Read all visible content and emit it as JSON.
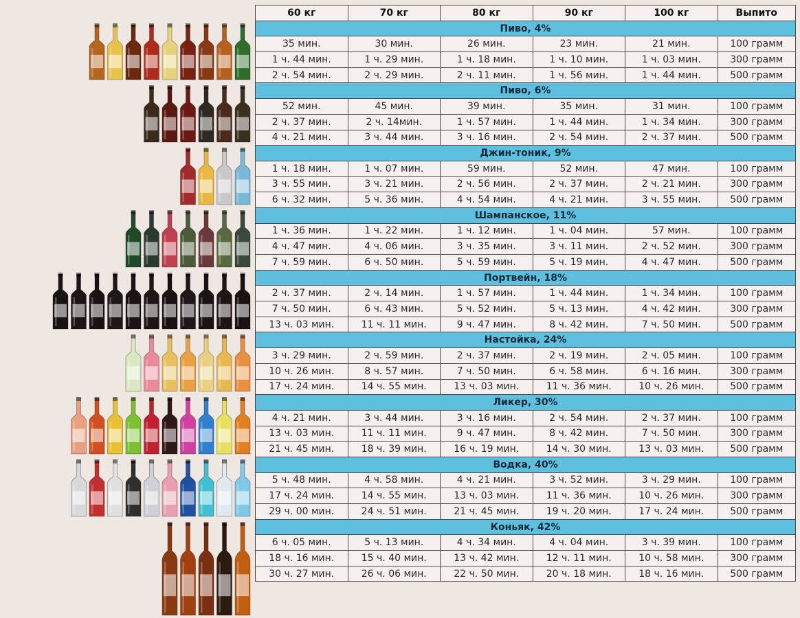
{
  "columns": [
    "60 кг",
    "70 кг",
    "80 кг",
    "90 кг",
    "100 кг",
    "Выпито"
  ],
  "sections": [
    {
      "title": "Пиво, 4%",
      "bottle_colors": [
        "#b5651d",
        "#e8c34a",
        "#6b2a10",
        "#b02a1a",
        "#e6d27a",
        "#7a2010",
        "#8a3a12",
        "#b5601e",
        "#2f6e2a"
      ],
      "rows": [
        [
          "35 мин.",
          "30 мин.",
          "26 мин.",
          "23 мин.",
          "21 мин.",
          "100 грамм"
        ],
        [
          "1 ч. 44 мин.",
          "1 ч. 29 мин.",
          "1 ч. 18 мин.",
          "1 ч. 10 мин.",
          "1 ч. 03 мин.",
          "300 грамм"
        ],
        [
          "2 ч. 54 мин.",
          "2 ч. 29 мин.",
          "2 ч. 11 мин.",
          "1 ч. 56 мин.",
          "1 ч. 44 мин.",
          "500 грамм"
        ]
      ]
    },
    {
      "title": "Пиво, 6%",
      "bottle_colors": [
        "#3a2a1a",
        "#5a1a10",
        "#6a1a12",
        "#2e2a22",
        "#4a2a1a",
        "#3a3020"
      ],
      "rows": [
        [
          "52 мин.",
          "45 мин.",
          "39 мин.",
          "35 мин.",
          "31 мин.",
          "100 грамм"
        ],
        [
          "2 ч. 37 мин.",
          "2 ч. 14мин.",
          "1 ч. 57 мин.",
          "1 ч. 44 мин.",
          "1 ч. 34 мин.",
          "300 грамм"
        ],
        [
          "4 ч. 21 мин.",
          "3 ч. 44 мин.",
          "3 ч. 16 мин.",
          "2 ч. 54 мин.",
          "2 ч. 37 мин.",
          "500 грамм"
        ]
      ]
    },
    {
      "title": "Джин-тоник, 9%",
      "bottle_colors": [
        "#a12a2a",
        "#e8b840",
        "#c8c8c8",
        "#7ab8d8"
      ],
      "rows": [
        [
          "1 ч. 18 мин.",
          "1 ч. 07 мин.",
          "59 мин.",
          "52 мин.",
          "47 мин.",
          "100 грамм"
        ],
        [
          "3 ч. 55 мин.",
          "3 ч. 21 мин.",
          "2 ч. 56 мин.",
          "2 ч. 37 мин.",
          "2 ч. 21 мин.",
          "300 грамм"
        ],
        [
          "6 ч. 32 мин.",
          "5 ч. 36 мин.",
          "4 ч. 54 мин.",
          "4 ч. 21 мин.",
          "3 ч. 55 мин.",
          "500 грамм"
        ]
      ]
    },
    {
      "title": "Шампанское, 11%",
      "bottle_colors": [
        "#1e4a2a",
        "#2a3a30",
        "#c04050",
        "#4a5a3a",
        "#6a3a3a",
        "#5a6a40",
        "#3a4a3a"
      ],
      "rows": [
        [
          "1 ч. 36 мин.",
          "1 ч. 22 мин.",
          "1 ч. 12 мин.",
          "1 ч. 04 мин.",
          "57 мин.",
          "100 грамм"
        ],
        [
          "4 ч. 47 мин.",
          "4 ч. 06 мин.",
          "3 ч. 35 мин.",
          "3 ч. 11 мин.",
          "2 ч. 52 мин.",
          "300 грамм"
        ],
        [
          "7 ч. 59 мин.",
          "6 ч. 50 мин.",
          "5 ч. 59 мин.",
          "5 ч. 19 мин.",
          "4 ч. 47 мин.",
          "500 грамм"
        ]
      ]
    },
    {
      "title": "Портвейн, 18%",
      "bottle_colors": [
        "#1a1414",
        "#1e1616",
        "#1a1212",
        "#201818",
        "#1a1414",
        "#1e1616",
        "#1a1212",
        "#201818",
        "#1a1414",
        "#1e1616",
        "#1a1212"
      ],
      "rows": [
        [
          "2 ч. 37 мин.",
          "2 ч. 14 мин.",
          "1 ч. 57 мин.",
          "1 ч. 44 мин.",
          "1 ч. 34 мин.",
          "100 грамм"
        ],
        [
          "7 ч. 50 мин.",
          "6 ч. 43 мин.",
          "5 ч. 52 мин.",
          "5 ч. 13 мин.",
          "4 ч. 42 мин.",
          "300 грамм"
        ],
        [
          "13 ч. 03 мин.",
          "11 ч. 11 мин.",
          "9 ч. 47 мин.",
          "8 ч. 42 мин.",
          "7 ч. 50 мин.",
          "500 грамм"
        ]
      ]
    },
    {
      "title": "Настойка, 24%",
      "bottle_colors": [
        "#d8e8c0",
        "#e88a9a",
        "#e8c060",
        "#e8a040",
        "#e8d080",
        "#e8b850",
        "#e89040"
      ],
      "rows": [
        [
          "3 ч. 29 мин.",
          "2 ч. 59 мин.",
          "2 ч. 37 мин.",
          "2 ч. 19 мин.",
          "2 ч. 05 мин.",
          "100 грамм"
        ],
        [
          "10 ч. 26 мин.",
          "8 ч. 57 мин.",
          "7 ч. 50 мин.",
          "6 ч. 58 мин.",
          "6 ч. 16 мин.",
          "300 грамм"
        ],
        [
          "17 ч. 24 мин.",
          "14 ч. 55 мин.",
          "13 ч. 03 мин.",
          "11 ч. 36 мин.",
          "10 ч. 26 мин.",
          "500 грамм"
        ]
      ]
    },
    {
      "title": "Ликер, 30%",
      "bottle_colors": [
        "#e8a080",
        "#d05020",
        "#e8c030",
        "#7ac030",
        "#c02030",
        "#301818",
        "#d040a0",
        "#3080d0",
        "#e8e060",
        "#e08020"
      ],
      "rows": [
        [
          "4 ч. 21 мин.",
          "3 ч. 44 мин.",
          "3 ч. 16 мин.",
          "2 ч. 54 мин.",
          "2 ч. 37 мин.",
          "100 грамм"
        ],
        [
          "13 ч. 03 мин.",
          "11 ч. 11 мин.",
          "9 ч. 47 мин.",
          "8 ч. 42 мин.",
          "7 ч. 50 мин.",
          "300 грамм"
        ],
        [
          "21 ч. 45 мин.",
          "18 ч. 39 мин.",
          "16 ч. 19 мин.",
          "14 ч. 30 мин.",
          "13 ч. 03 мин.",
          "500 грамм"
        ]
      ]
    },
    {
      "title": "Водка, 40%",
      "bottle_colors": [
        "#d8d8d8",
        "#c03030",
        "#e0e0e0",
        "#303030",
        "#d0d0d8",
        "#e8a0b0",
        "#2050a0",
        "#40c0d0",
        "#e0e8f0",
        "#80c8e8"
      ],
      "rows": [
        [
          "5 ч. 48 мин.",
          "4 ч. 58 мин.",
          "4 ч. 21 мин.",
          "3 ч. 52 мин.",
          "3 ч. 29 мин.",
          "100 грамм"
        ],
        [
          "17 ч. 24 мин.",
          "14 ч. 55 мин.",
          "13 ч. 03 мин.",
          "11 ч. 36 мин.",
          "10 ч. 26 мин.",
          "300 грамм"
        ],
        [
          "29 ч. 00 мин.",
          "24 ч. 51 мин.",
          "21 ч. 45 мин.",
          "19 ч. 20 мин.",
          "17 ч. 24 мин.",
          "500 грамм"
        ]
      ]
    },
    {
      "title": "Коньяк, 42%",
      "bottle_colors": [
        "#8a3a10",
        "#a04010",
        "#7a3010",
        "#2a1a10",
        "#c06010"
      ],
      "rows": [
        [
          "6 ч. 05 мин.",
          "5 ч. 13 мин.",
          "4 ч. 34 мин.",
          "4 ч. 04 мин.",
          "3 ч. 39 мин.",
          "100 грамм"
        ],
        [
          "18 ч. 16 мин.",
          "15 ч. 40 мин.",
          "13 ч. 42 мин.",
          "12 ч. 11 мин.",
          "10 ч. 58 мин.",
          "300 грамм"
        ],
        [
          "30 ч. 27 мин.",
          "26 ч. 06 мин.",
          "22 ч. 50 мин.",
          "20 ч. 18 мин.",
          "18 ч. 16 мин.",
          "500 грамм"
        ]
      ]
    }
  ]
}
